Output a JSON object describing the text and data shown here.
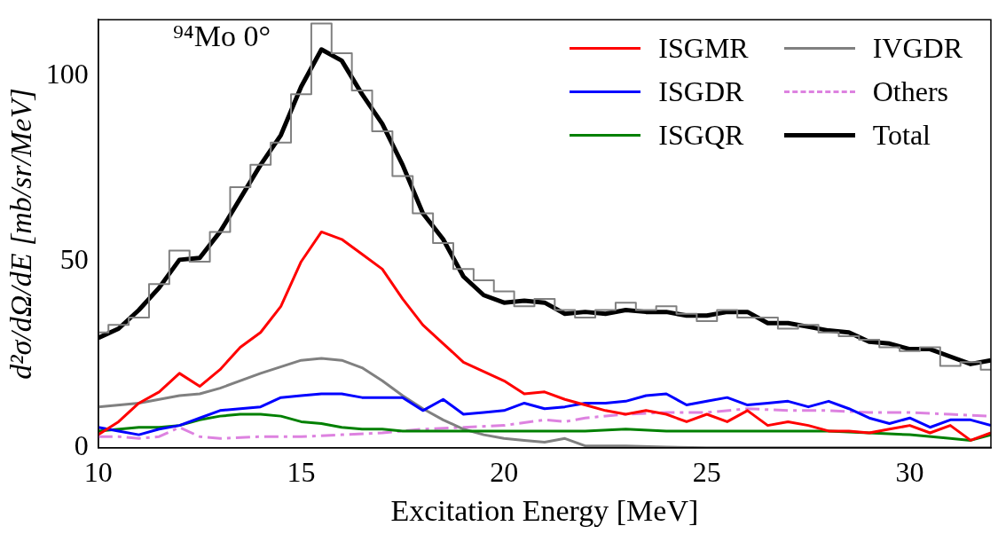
{
  "chart_data": {
    "type": "line",
    "xlabel": "Excitation Energy [MeV]",
    "ylabel": "d²σ/dΩ/dE [mb/sr/MeV]",
    "annotations": [
      "⁹⁴Mo 0°"
    ],
    "xlim": [
      10,
      32
    ],
    "xticks": [
      10,
      15,
      20,
      25,
      30
    ],
    "ylim": [
      0,
      115
    ],
    "yticks": [
      0,
      50,
      100
    ],
    "grid": false,
    "legend": "top right",
    "marker": "none",
    "series": [
      {
        "type": "step",
        "color": "#808080",
        "x": [
          10,
          10.5,
          11,
          11.5,
          12,
          12.5,
          13,
          13.5,
          14,
          14.5,
          15,
          15.5,
          16,
          16.5,
          17,
          17.5,
          18,
          18.5,
          19,
          19.5,
          20,
          20.5,
          21,
          21.5,
          22,
          22.5,
          23,
          23.5,
          24,
          24.5,
          25,
          25.5,
          26,
          26.5,
          27,
          27.5,
          28,
          28.5,
          29,
          29.5,
          30,
          30.5,
          31,
          31.5,
          32
        ],
        "values": [
          31,
          33,
          35,
          44,
          53,
          50,
          58,
          70,
          76,
          82,
          95,
          114,
          106,
          96,
          85,
          73,
          63,
          55,
          48,
          45,
          42,
          38,
          40,
          37,
          35,
          37,
          39,
          37,
          38,
          36,
          34,
          37,
          35,
          35,
          32,
          33,
          31,
          30,
          29,
          27,
          26,
          27,
          22,
          23,
          21
        ]
      },
      {
        "name": "ISGMR",
        "color": "#ff0000",
        "x": [
          10,
          10.5,
          11,
          11.5,
          12,
          12.5,
          13,
          13.5,
          14,
          14.5,
          15,
          15.5,
          16,
          16.5,
          17,
          17.5,
          18,
          18.5,
          19,
          19.5,
          20,
          20.5,
          21,
          21.5,
          22,
          22.5,
          23,
          23.5,
          24,
          24.5,
          25,
          25.5,
          26,
          26.5,
          27,
          27.5,
          28,
          28.5,
          29,
          29.5,
          30,
          30.5,
          31,
          31.5,
          32
        ],
        "values": [
          3.5,
          7,
          12,
          15,
          20,
          16.5,
          21,
          27,
          31,
          38,
          50,
          58,
          56,
          52,
          48,
          40,
          33,
          28,
          23,
          20.5,
          18,
          14.5,
          15,
          13,
          11.5,
          10,
          9,
          10,
          9,
          7,
          9,
          7,
          10,
          6,
          7,
          6,
          4.5,
          4.5,
          4,
          5,
          6,
          4,
          6,
          2,
          4
        ]
      },
      {
        "name": "ISGDR",
        "color": "#0000ff",
        "x": [
          10,
          10.5,
          11,
          11.5,
          12,
          12.5,
          13,
          13.5,
          14,
          14.5,
          15,
          15.5,
          16,
          16.5,
          17,
          17.5,
          18,
          18.5,
          19,
          19.5,
          20,
          20.5,
          21,
          21.5,
          22,
          22.5,
          23,
          23.5,
          24,
          24.5,
          25,
          25.5,
          26,
          26.5,
          27,
          27.5,
          28,
          28.5,
          29,
          29.5,
          30,
          30.5,
          31,
          31.5,
          32
        ],
        "values": [
          5.5,
          4.5,
          3.5,
          5,
          6,
          8,
          10,
          10.5,
          11,
          13.5,
          14,
          14.5,
          14.5,
          13.5,
          13.5,
          13.5,
          10,
          13,
          9,
          9.5,
          10,
          12,
          10.5,
          11,
          12,
          12,
          12.5,
          14,
          14.5,
          11.5,
          12.5,
          13.5,
          11.5,
          12,
          12.5,
          11,
          12.5,
          10.5,
          8,
          6.5,
          8,
          5.5,
          7.5,
          7.5,
          6
        ]
      },
      {
        "name": "ISGQR",
        "color": "#008000",
        "x": [
          10,
          11,
          11.5,
          12,
          12.5,
          13,
          13.5,
          14,
          14.5,
          15,
          15.5,
          16,
          16.5,
          17,
          17.5,
          18,
          18.5,
          19,
          20,
          21,
          22,
          23,
          24,
          25,
          26,
          27,
          28,
          29,
          30,
          31,
          31.5,
          32
        ],
        "values": [
          4.5,
          5.5,
          5.5,
          6,
          7.5,
          8.5,
          9,
          9,
          8.5,
          7,
          6.5,
          5.5,
          5,
          5,
          4.5,
          4.5,
          4.5,
          4.5,
          4.5,
          4.5,
          4.5,
          5,
          4.5,
          4.5,
          4.5,
          4.5,
          4.5,
          4,
          3.5,
          2.5,
          2,
          3.5
        ]
      },
      {
        "name": "IVGDR",
        "color": "#808080",
        "x": [
          10,
          11,
          12,
          12.5,
          13,
          14,
          15,
          15.5,
          16,
          16.5,
          17,
          17.5,
          18,
          18.5,
          19,
          19.5,
          20,
          20.5,
          21,
          21.5,
          22,
          23,
          24,
          25,
          32
        ],
        "values": [
          11,
          12,
          14,
          14.5,
          16,
          20,
          23.5,
          24,
          23.5,
          21.5,
          18,
          14,
          10.5,
          7.5,
          5,
          3.5,
          2.5,
          2,
          1.5,
          2.5,
          0.5,
          0.5,
          0.2,
          0,
          0
        ]
      },
      {
        "name": "Others",
        "color": "#dd82e0",
        "line_style": "dashdot",
        "x": [
          10,
          10.5,
          11,
          11.5,
          12,
          12.5,
          13,
          14,
          15,
          16,
          17,
          18,
          19,
          20,
          21,
          21.5,
          22,
          23,
          24,
          25,
          26,
          27,
          28,
          29,
          30,
          31,
          32
        ],
        "values": [
          3,
          3,
          2.5,
          3,
          5.5,
          3,
          2.5,
          3,
          3,
          3.5,
          4,
          5,
          5.5,
          6,
          7.5,
          7,
          8,
          9,
          9.5,
          9.5,
          10.5,
          10,
          10,
          9.5,
          9.5,
          9,
          8.5
        ]
      },
      {
        "name": "Total",
        "color": "#000000",
        "x": [
          10,
          10.5,
          11,
          11.5,
          12,
          12.5,
          13,
          13.5,
          14,
          14.5,
          15,
          15.5,
          16,
          16.5,
          17,
          17.5,
          18,
          18.5,
          19,
          19.5,
          20,
          20.5,
          21,
          21.5,
          22,
          22.5,
          23,
          23.5,
          24,
          24.5,
          25,
          25.5,
          26,
          26.5,
          27,
          27.5,
          28,
          28.5,
          29,
          29.5,
          30,
          30.5,
          31,
          31.5,
          32
        ],
        "values": [
          29.5,
          32,
          37,
          43,
          50.5,
          51,
          58,
          67,
          76,
          84,
          97,
          107,
          104,
          95,
          87,
          76,
          63,
          56,
          46,
          41,
          39,
          39.5,
          39,
          36,
          36.5,
          36,
          37,
          36.5,
          36.5,
          35.5,
          35.5,
          36.5,
          36.5,
          33.5,
          33.5,
          32.5,
          31.5,
          31,
          28.5,
          28,
          26.5,
          26.5,
          24.5,
          22.5,
          23.5
        ]
      }
    ]
  }
}
